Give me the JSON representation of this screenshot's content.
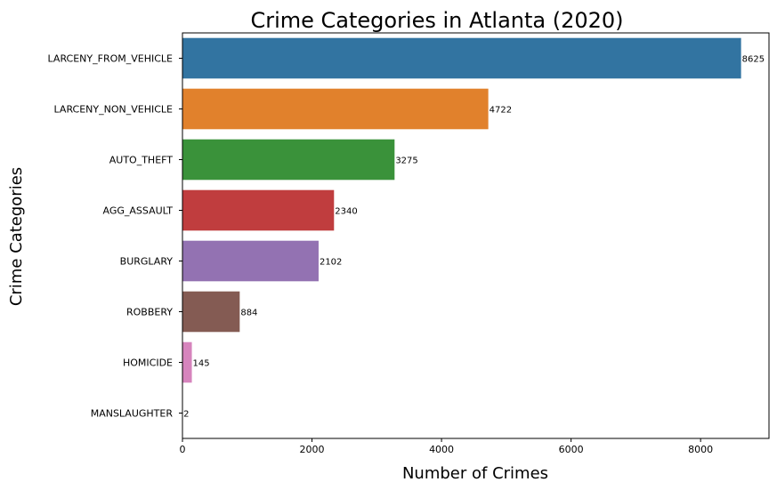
{
  "chart_data": {
    "type": "bar",
    "orientation": "horizontal",
    "title": "Crime Categories in Atlanta (2020)",
    "xlabel": "Number of Crimes",
    "ylabel": "Crime Categories",
    "categories": [
      "LARCENY_FROM_VEHICLE",
      "LARCENY_NON_VEHICLE",
      "AUTO_THEFT",
      "AGG_ASSAULT",
      "BURGLARY",
      "ROBBERY",
      "HOMICIDE",
      "MANSLAUGHTER"
    ],
    "values": [
      8625,
      4722,
      3275,
      2340,
      2102,
      884,
      145,
      2
    ],
    "data_labels": [
      "8625",
      "4722",
      "3275",
      "2340",
      "2102",
      "884",
      "145",
      "2"
    ],
    "xlim": [
      0,
      9056
    ],
    "xticks": [
      0,
      2000,
      4000,
      6000,
      8000
    ],
    "xtick_labels": [
      "0",
      "2000",
      "4000",
      "6000",
      "8000"
    ],
    "grid": false,
    "legend": "none",
    "colors": [
      "#3274a1",
      "#e1812c",
      "#3a923a",
      "#c03d3e",
      "#9372b2",
      "#845b53",
      "#d684bd",
      "#7f7f7f"
    ]
  }
}
